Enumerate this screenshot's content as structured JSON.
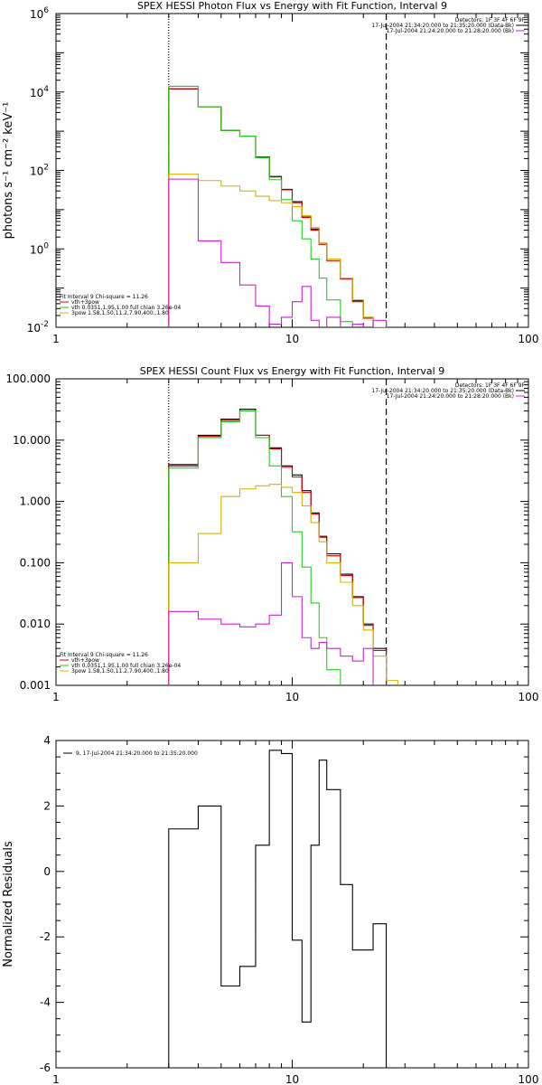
{
  "chart_data": [
    {
      "type": "line",
      "step": true,
      "title": "SPEX HESSI Photon Flux vs Energy with Fit Function, Interval 9",
      "xlabel": "",
      "ylabel": "photons s⁻¹ cm⁻² keV⁻¹",
      "xscale": "log",
      "yscale": "log",
      "xlim": [
        1,
        100
      ],
      "ylim": [
        0.01,
        1000000
      ],
      "xticks": [
        {
          "v": 1,
          "label": "1"
        },
        {
          "v": 10,
          "label": "10"
        },
        {
          "v": 100,
          "label": "100"
        }
      ],
      "yticks": [
        {
          "v": 0.01,
          "html": "10<sup>-2</sup>",
          "base": "10",
          "exp": "-2"
        },
        {
          "v": 1,
          "base": "10",
          "exp": "0"
        },
        {
          "v": 100,
          "base": "10",
          "exp": "2"
        },
        {
          "v": 10000,
          "base": "10",
          "exp": "4"
        },
        {
          "v": 1000000,
          "base": "10",
          "exp": "6"
        }
      ],
      "vlines": [
        {
          "x": 3.0,
          "style": "dotted"
        },
        {
          "x": 25.0,
          "style": "dashed"
        }
      ],
      "edges": [
        3,
        4,
        5,
        6,
        7,
        8,
        9,
        10,
        11,
        12,
        13,
        14,
        16,
        18,
        20,
        22,
        25,
        28,
        32
      ],
      "series": [
        {
          "name": "data",
          "color": "#000000",
          "values": [
            12000,
            4200,
            1050,
            750,
            220,
            70,
            33,
            16,
            6.5,
            3.2,
            1.4,
            0.55,
            0.18,
            0.048,
            0.018,
            0.01,
            null,
            null
          ]
        },
        {
          "name": "vth+3pow",
          "color": "#d40000",
          "values": [
            12000,
            4200,
            1050,
            750,
            215,
            68,
            32,
            15,
            6.3,
            3.0,
            1.3,
            0.5,
            0.17,
            0.045,
            0.017,
            0.009,
            null,
            null
          ]
        },
        {
          "name": "vth",
          "color": "#22cc22",
          "values": [
            14000,
            4200,
            1050,
            750,
            210,
            58,
            18,
            5.2,
            1.8,
            0.55,
            0.18,
            0.05,
            0.014,
            null,
            null,
            null,
            null,
            null
          ]
        },
        {
          "name": "3pow",
          "color": "#d4b400",
          "values": [
            80,
            55,
            40,
            30,
            22,
            17,
            15,
            12,
            7,
            3.5,
            1.4,
            0.55,
            0.18,
            0.05,
            0.018,
            0.01,
            null,
            null
          ]
        },
        {
          "name": "bkg",
          "color": "#cc22cc",
          "values": [
            60,
            1.6,
            0.45,
            0.12,
            0.035,
            0.012,
            0.018,
            0.045,
            0.11,
            0.015,
            0.005,
            0.018,
            0.009,
            0.012,
            0.008,
            0.015,
            null,
            null
          ]
        }
      ],
      "legend": {
        "position": "top-right",
        "lines": [
          {
            "text": "Detectors: 1F 3F 4F 6F 9F"
          },
          {
            "text": "17-Jul-2004 21:34:20.000 to 21:35:20.000 (Data-Bk)",
            "color": "#000000"
          },
          {
            "text": "17-Jul-2004 21:24:20.000 to 21:28:20.000 (Bk)",
            "color": "#cc22cc"
          }
        ]
      },
      "fitlegend": {
        "position": "bottom-left",
        "lines": [
          {
            "text": "Fit Interval 9    Chi-square = 11.26"
          },
          {
            "text": "vth+3pow",
            "color": "#d40000"
          },
          {
            "text": "vth 0.0351,1.95,1.00  full chian 3.26e-04",
            "color": "#22cc22"
          },
          {
            "text": "3pow 1.58,1.50,11.2,7.90,400.,1.80",
            "color": "#d4b400"
          }
        ]
      }
    },
    {
      "type": "line",
      "step": true,
      "title": "SPEX HESSI Count Flux vs Energy with Fit Function, Interval 9",
      "xlabel": "",
      "ylabel": "",
      "xscale": "log",
      "yscale": "log",
      "xlim": [
        1,
        100
      ],
      "ylim": [
        0.001,
        100
      ],
      "xticks": [
        {
          "v": 1,
          "label": "1"
        },
        {
          "v": 10,
          "label": "10"
        },
        {
          "v": 100,
          "label": "100"
        }
      ],
      "yticks": [
        {
          "v": 0.001,
          "label": "0.001"
        },
        {
          "v": 0.01,
          "label": "0.010"
        },
        {
          "v": 0.1,
          "label": "0.100"
        },
        {
          "v": 1,
          "label": "1.000"
        },
        {
          "v": 10,
          "label": "10.000"
        },
        {
          "v": 100,
          "label": "100.000"
        }
      ],
      "vlines": [
        {
          "x": 3.0,
          "style": "dotted"
        },
        {
          "x": 25.0,
          "style": "dashed"
        }
      ],
      "edges": [
        3,
        4,
        5,
        6,
        7,
        8,
        9,
        10,
        11,
        12,
        13,
        14,
        16,
        18,
        20,
        22,
        25,
        28,
        32
      ],
      "series": [
        {
          "name": "data",
          "color": "#000000",
          "values": [
            4.0,
            12,
            22,
            32,
            12,
            7.5,
            3.8,
            2.7,
            1.5,
            0.65,
            0.27,
            0.14,
            0.065,
            0.028,
            0.01,
            0.004,
            null,
            null
          ]
        },
        {
          "name": "vth+3pow",
          "color": "#d40000",
          "values": [
            3.8,
            11.5,
            21,
            30,
            12,
            7.2,
            3.6,
            2.5,
            1.4,
            0.62,
            0.26,
            0.13,
            0.062,
            0.027,
            0.0095,
            0.0037,
            null,
            null
          ]
        },
        {
          "name": "vth",
          "color": "#22cc22",
          "values": [
            3.5,
            11,
            20,
            30,
            11,
            3.8,
            1.2,
            0.32,
            0.085,
            0.022,
            0.006,
            0.0018,
            0.0007,
            null,
            null,
            null,
            null,
            null
          ]
        },
        {
          "name": "3pow",
          "color": "#d4b400",
          "values": [
            0.1,
            0.3,
            1.2,
            1.6,
            1.8,
            1.9,
            1.7,
            1.4,
            0.85,
            0.45,
            0.22,
            0.1,
            0.048,
            0.02,
            0.008,
            0.003,
            0.0012,
            null
          ]
        },
        {
          "name": "bkg",
          "color": "#cc22cc",
          "values": [
            0.016,
            0.012,
            0.01,
            0.009,
            0.01,
            0.014,
            0.1,
            0.028,
            0.006,
            0.004,
            0.005,
            0.004,
            0.003,
            0.0025,
            0.004,
            null,
            null,
            null
          ]
        }
      ],
      "legend": {
        "position": "top-right",
        "lines": [
          {
            "text": "Detectors: 1F 3F 4F 6F 9F"
          },
          {
            "text": "17-Jul-2004 21:34:20.000 to 21:35:20.000 (Data-Bk)",
            "color": "#000000"
          },
          {
            "text": "17-Jul-2004 21:24:20.000 to 21:28:20.000 (Bk)",
            "color": "#cc22cc"
          }
        ]
      },
      "fitlegend": {
        "position": "bottom-left",
        "lines": [
          {
            "text": "Fit Interval 9    Chi-square = 11.26"
          },
          {
            "text": "vth+3pow",
            "color": "#d40000"
          },
          {
            "text": "vth 0.0351,1.95,1.00  full chian 3.26e-04",
            "color": "#22cc22"
          },
          {
            "text": "3pow 1.58,1.50,11.2,7.90,400.,1.80",
            "color": "#d4b400"
          }
        ]
      }
    },
    {
      "type": "line",
      "step": true,
      "title": "",
      "xlabel": "",
      "ylabel": "Normalized Residuals",
      "xscale": "log",
      "yscale": "linear",
      "xlim": [
        1,
        100
      ],
      "ylim": [
        -6,
        4
      ],
      "xticks": [
        {
          "v": 1,
          "label": "1"
        },
        {
          "v": 10,
          "label": "10"
        },
        {
          "v": 100,
          "label": "100"
        }
      ],
      "yticks": [
        {
          "v": -6,
          "label": "-6"
        },
        {
          "v": -4,
          "label": "-4"
        },
        {
          "v": -2,
          "label": "-2"
        },
        {
          "v": 0,
          "label": "0"
        },
        {
          "v": 2,
          "label": "2"
        },
        {
          "v": 4,
          "label": "4"
        }
      ],
      "vlines": [],
      "edges": [
        3,
        4,
        5,
        6,
        7,
        8,
        9,
        10,
        11,
        12,
        13,
        14,
        16,
        18,
        20,
        22,
        25
      ],
      "series": [
        {
          "name": "9, 17-Jul-2004 21:34:20.000 to 21:35:20.000",
          "color": "#000000",
          "values": [
            1.3,
            2.0,
            -3.5,
            -2.9,
            0.8,
            3.7,
            3.6,
            -2.1,
            -4.6,
            0.8,
            3.4,
            2.5,
            -0.4,
            -2.4,
            -2.4,
            -1.6
          ],
          "drop_to_bottom": true
        }
      ],
      "legend": {
        "position": "top-left",
        "lines": [
          {
            "text": "9, 17-Jul-2004 21:34:20.000 to 21:35:20.000",
            "color": "#000000"
          }
        ]
      }
    }
  ]
}
